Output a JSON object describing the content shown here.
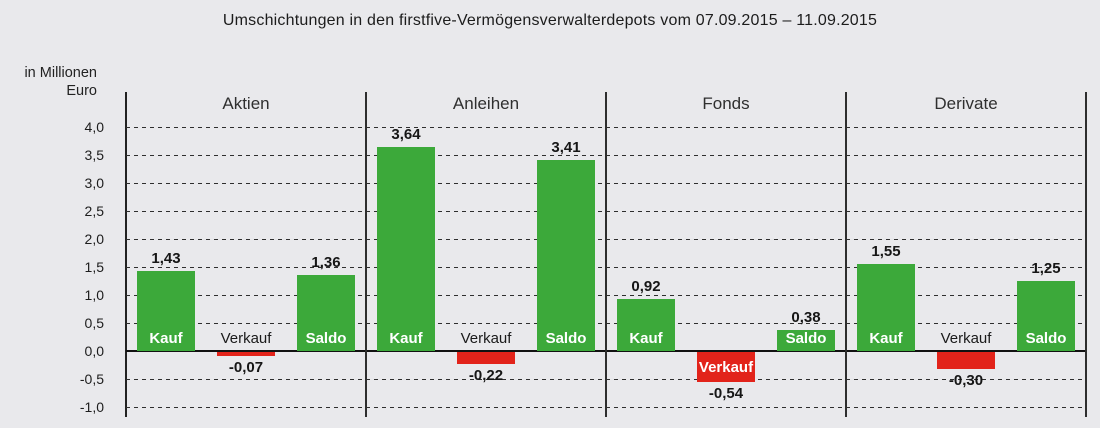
{
  "title": "Umschichtungen in den firstfive-Vermögensverwalterdepots vom 07.09.2015 – 11.09.2015",
  "axis_unit": {
    "line1": "in Millionen",
    "line2": "Euro"
  },
  "colors": {
    "background": "#e9e9ec",
    "positive_bar": "#3ca93a",
    "negative_bar": "#e2231a",
    "zero_line": "#111111",
    "grid": "#2e2e2e",
    "text": "#1c1c1c",
    "bar_label_white": "#ffffff"
  },
  "chart_data": {
    "type": "bar",
    "title": "Umschichtungen in den firstfive-Vermögensverwalterdepots vom 07.09.2015 – 11.09.2015",
    "ylabel": "in Millionen Euro",
    "xlabel": "",
    "ylim": [
      -1.0,
      4.0
    ],
    "ytick_step": 0.5,
    "ytick_labels": [
      "4,0",
      "3,5",
      "3,0",
      "2,5",
      "2,0",
      "1,5",
      "1,0",
      "0,5",
      "0,0",
      "-0,5",
      "-1,0"
    ],
    "grid": "dashed horizontal, solid zero line, vertical group separators",
    "legend": "none",
    "groups": [
      {
        "label": "Aktien",
        "bars": [
          {
            "name": "Kauf",
            "value": 1.43,
            "value_label": "1,43",
            "name_label_placement": "inside-white"
          },
          {
            "name": "Verkauf",
            "value": -0.07,
            "value_label": "-0,07",
            "name_label_placement": "above-axis-black"
          },
          {
            "name": "Saldo",
            "value": 1.36,
            "value_label": "1,36",
            "name_label_placement": "inside-white"
          }
        ]
      },
      {
        "label": "Anleihen",
        "bars": [
          {
            "name": "Kauf",
            "value": 3.64,
            "value_label": "3,64",
            "name_label_placement": "inside-white"
          },
          {
            "name": "Verkauf",
            "value": -0.22,
            "value_label": "-0,22",
            "name_label_placement": "above-axis-black"
          },
          {
            "name": "Saldo",
            "value": 3.41,
            "value_label": "3,41",
            "name_label_placement": "inside-white"
          }
        ]
      },
      {
        "label": "Fonds",
        "bars": [
          {
            "name": "Kauf",
            "value": 0.92,
            "value_label": "0,92",
            "name_label_placement": "inside-white"
          },
          {
            "name": "Verkauf",
            "value": -0.54,
            "value_label": "-0,54",
            "name_label_placement": "inside-negative-white"
          },
          {
            "name": "Saldo",
            "value": 0.38,
            "value_label": "0,38",
            "name_label_placement": "inside-white"
          }
        ]
      },
      {
        "label": "Derivate",
        "bars": [
          {
            "name": "Kauf",
            "value": 1.55,
            "value_label": "1,55",
            "name_label_placement": "inside-white"
          },
          {
            "name": "Verkauf",
            "value": -0.3,
            "value_label": "-0,30",
            "name_label_placement": "above-axis-black"
          },
          {
            "name": "Saldo",
            "value": 1.25,
            "value_label": "1,25",
            "name_label_placement": "inside-white"
          }
        ]
      }
    ]
  }
}
